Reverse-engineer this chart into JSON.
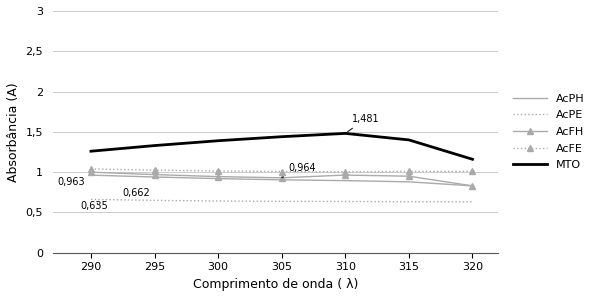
{
  "x": [
    290,
    295,
    300,
    305,
    310,
    315,
    320
  ],
  "AcPH": [
    0.963,
    0.94,
    0.92,
    0.905,
    0.895,
    0.88,
    0.83
  ],
  "AcPE": [
    0.662,
    0.65,
    0.642,
    0.638,
    0.636,
    0.634,
    0.632
  ],
  "AcFH": [
    1.0,
    0.97,
    0.945,
    0.93,
    0.964,
    0.95,
    0.83
  ],
  "AcFE": [
    1.04,
    1.025,
    1.015,
    1.008,
    1.005,
    1.01,
    1.01
  ],
  "MTO": [
    1.26,
    1.33,
    1.39,
    1.44,
    1.481,
    1.4,
    1.16
  ],
  "xlabel": "Comprimento de onda ( λ)",
  "ylabel": "Absorbância (A)",
  "ylim": [
    0,
    3
  ],
  "yticks": [
    0,
    0.5,
    1.0,
    1.5,
    2.0,
    2.5,
    3.0
  ],
  "ytick_labels": [
    "0",
    "0,5",
    "1",
    "1,5",
    "2",
    "2,5",
    "3"
  ],
  "xlim": [
    287,
    322
  ],
  "xticks": [
    290,
    295,
    300,
    305,
    310,
    315,
    320
  ],
  "legend_labels": [
    "AcPH",
    "AcPE",
    "AcFH",
    "AcFE",
    "MTO"
  ],
  "colors": {
    "AcPH": "#aaaaaa",
    "AcPE": "#aaaaaa",
    "AcFH": "#aaaaaa",
    "AcFE": "#aaaaaa",
    "MTO": "#000000"
  },
  "background_color": "#ffffff",
  "grid_color": "#cccccc"
}
